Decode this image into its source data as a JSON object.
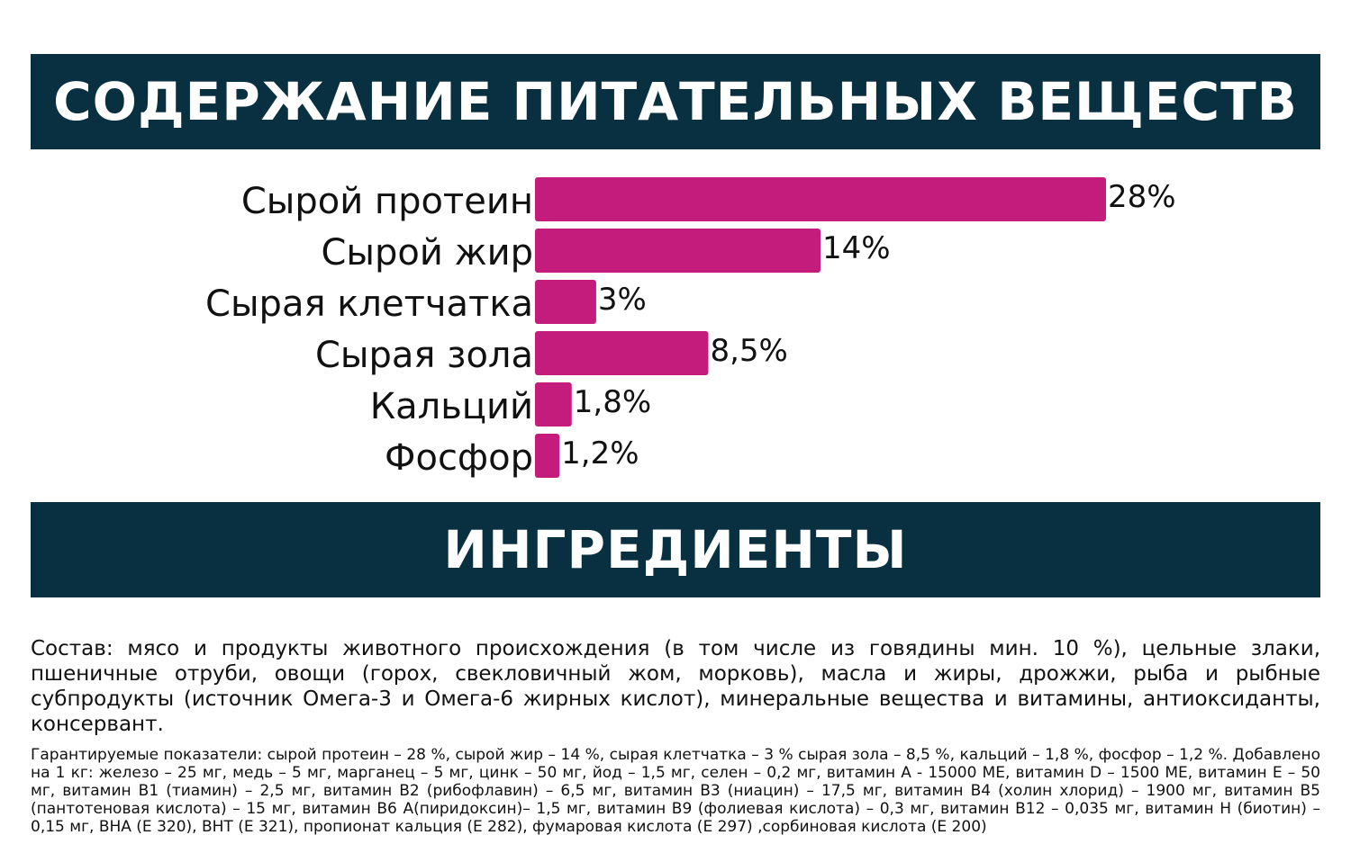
{
  "header": {
    "title": "СОДЕРЖАНИЕ ПИТАТЕЛЬНЫХ ВЕЩЕСТВ"
  },
  "ingredients": {
    "title": "ИНГРЕДИЕНТЫ",
    "composition": "Состав: мясо и продукты животного происхождения (в том числе из говядины мин. 10 %), цельные злаки, пшеничные отруби, овощи (горох, свекловичный жом, морковь), масла и жиры, дрожжи, рыба и рыбные субпродукты (источник Омега-3 и Омега-6 жирных кислот), минеральные вещества и витамины, антиоксиданты, консервант.",
    "guarantee": "Гарантируемые показатели: сырой протеин – 28 %, сырой жир – 14 %, сырая клетчатка – 3 % сырая зола – 8,5 %, кальций – 1,8 %, фосфор – 1,2 %. Добавлено на 1 кг: железо – 25 мг, медь – 5 мг, марганец – 5 мг, цинк – 50 мг, йод – 1,5 мг, селен – 0,2 мг, витамин А - 15000 МЕ, витамин D – 1500 МЕ, витамин Е – 50 мг, витамин В1 (тиамин) – 2,5 мг, витамин В2 (рибофлавин) – 6,5 мг, витамин В3 (ниацин) – 17,5 мг, витамин В4 (холин хлорид) – 1900 мг, витамин В5 (пантотеновая кислота) – 15 мг, витамин В6 А(пиридоксин)– 1,5 мг, витамин В9 (фолиевая кислота) – 0,3 мг, витамин В12 – 0,035 мг, витамин Н (биотин) – 0,15 мг, ВНА (Е 320), ВНТ (Е 321), пропионат кальция (Е 282), фумаровая кислота (Е 297) ,сорбиновая кислота (Е 200)"
  },
  "colors": {
    "banner": "#083040",
    "bar": "#c41c7c",
    "text": "#111111"
  },
  "chart_data": {
    "type": "bar",
    "orientation": "horizontal",
    "categories": [
      "Сырой протеин",
      "Сырой жир",
      "Сырая клетчатка",
      "Сырая зола",
      "Кальций",
      "Фосфор"
    ],
    "values": [
      28,
      14,
      3,
      8.5,
      1.8,
      1.2
    ],
    "value_labels": [
      "28%",
      "14%",
      "3%",
      "8,5%",
      "1,8%",
      "1,2%"
    ],
    "unit": "%",
    "grid": false,
    "legend": "none"
  }
}
